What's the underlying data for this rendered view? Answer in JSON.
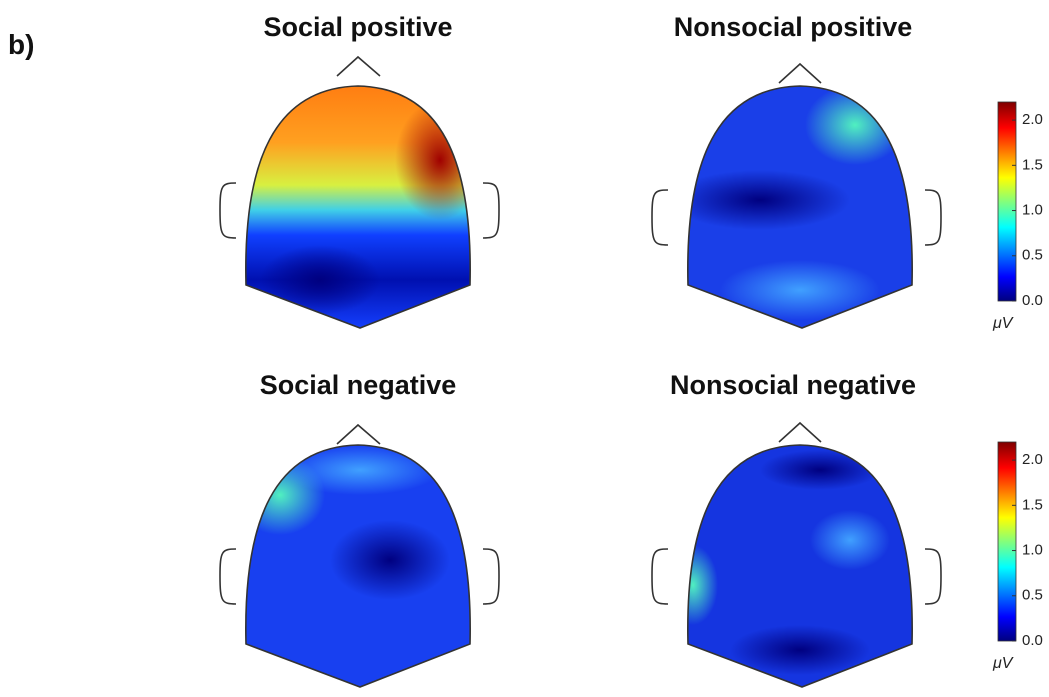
{
  "panel_label": "b)",
  "maps": [
    {
      "title": "Social positive"
    },
    {
      "title": "Nonsocial positive"
    },
    {
      "title": "Social negative"
    },
    {
      "title": "Nonsocial negative"
    }
  ],
  "colorbars": [
    {
      "clim": [
        0,
        2.2
      ],
      "ticks": [
        {
          "value": 0,
          "label": "0.0"
        },
        {
          "value": 0.5,
          "label": "0.5"
        },
        {
          "value": 1,
          "label": "1.0"
        },
        {
          "value": 1.5,
          "label": "1.5"
        },
        {
          "value": 2,
          "label": "2.0"
        }
      ],
      "unit": "μV"
    },
    {
      "clim": [
        0,
        2.2
      ],
      "ticks": [
        {
          "value": 0,
          "label": "0.0"
        },
        {
          "value": 0.5,
          "label": "0.5"
        },
        {
          "value": 1,
          "label": "1.0"
        },
        {
          "value": 1.5,
          "label": "1.5"
        },
        {
          "value": 2,
          "label": "2.0"
        }
      ],
      "unit": "μV"
    }
  ]
}
